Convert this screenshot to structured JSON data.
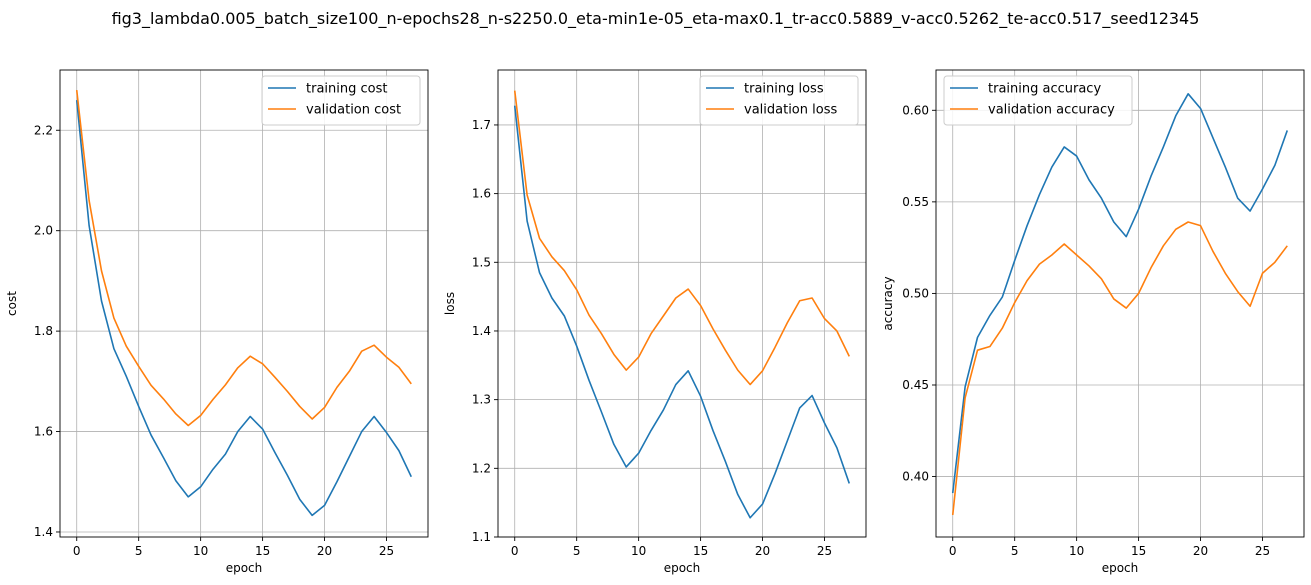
{
  "figure": {
    "suptitle": "fig3_lambda0.005_batch_size100_n-epochs28_n-s2250.0_eta-min1e-05_eta-max0.1_tr-acc0.5889_v-acc0.5262_te-acc0.517_seed12345"
  },
  "colors": {
    "series1": "#1f77b4",
    "series2": "#ff7f0e",
    "grid": "#b0b0b0"
  },
  "chart_data": [
    {
      "type": "line",
      "xlabel": "epoch",
      "ylabel": "cost",
      "grid": true,
      "legend_loc": "top-right",
      "xlim": [
        -1.35,
        28.35
      ],
      "ylim": [
        1.39,
        2.32
      ],
      "xticks": [
        0,
        5,
        10,
        15,
        20,
        25
      ],
      "yticks": [
        1.4,
        1.6,
        1.8,
        2.0,
        2.2
      ],
      "ytick_labels": [
        "1.4",
        "1.6",
        "1.8",
        "2.0",
        "2.2"
      ],
      "x": [
        0,
        1,
        2,
        3,
        4,
        5,
        6,
        7,
        8,
        9,
        10,
        11,
        12,
        13,
        14,
        15,
        16,
        17,
        18,
        19,
        20,
        21,
        22,
        23,
        24,
        25,
        26,
        27
      ],
      "series": [
        {
          "name": "training cost",
          "values": [
            2.26,
            2.01,
            1.86,
            1.765,
            1.71,
            1.65,
            1.593,
            1.548,
            1.502,
            1.47,
            1.49,
            1.525,
            1.555,
            1.6,
            1.63,
            1.605,
            1.558,
            1.513,
            1.465,
            1.433,
            1.453,
            1.5,
            1.55,
            1.6,
            1.63,
            1.598,
            1.562,
            1.51
          ]
        },
        {
          "name": "validation cost",
          "values": [
            2.28,
            2.06,
            1.92,
            1.826,
            1.77,
            1.73,
            1.692,
            1.665,
            1.635,
            1.612,
            1.632,
            1.664,
            1.693,
            1.727,
            1.75,
            1.735,
            1.708,
            1.68,
            1.65,
            1.625,
            1.648,
            1.688,
            1.72,
            1.76,
            1.772,
            1.748,
            1.728,
            1.695
          ]
        }
      ]
    },
    {
      "type": "line",
      "xlabel": "epoch",
      "ylabel": "loss",
      "grid": true,
      "legend_loc": "top-right",
      "xlim": [
        -1.35,
        28.35
      ],
      "ylim": [
        1.1,
        1.78
      ],
      "xticks": [
        0,
        5,
        10,
        15,
        20,
        25
      ],
      "yticks": [
        1.1,
        1.2,
        1.3,
        1.4,
        1.5,
        1.6,
        1.7
      ],
      "ytick_labels": [
        "1.1",
        "1.2",
        "1.3",
        "1.4",
        "1.5",
        "1.6",
        "1.7"
      ],
      "x": [
        0,
        1,
        2,
        3,
        4,
        5,
        6,
        7,
        8,
        9,
        10,
        11,
        12,
        13,
        14,
        15,
        16,
        17,
        18,
        19,
        20,
        21,
        22,
        23,
        24,
        25,
        26,
        27
      ],
      "series": [
        {
          "name": "training loss",
          "values": [
            1.728,
            1.56,
            1.485,
            1.448,
            1.422,
            1.378,
            1.328,
            1.282,
            1.235,
            1.202,
            1.222,
            1.255,
            1.285,
            1.322,
            1.342,
            1.305,
            1.255,
            1.21,
            1.162,
            1.128,
            1.148,
            1.192,
            1.24,
            1.288,
            1.306,
            1.266,
            1.23,
            1.178
          ]
        },
        {
          "name": "validation loss",
          "values": [
            1.75,
            1.598,
            1.535,
            1.508,
            1.488,
            1.46,
            1.423,
            1.396,
            1.366,
            1.343,
            1.362,
            1.396,
            1.422,
            1.448,
            1.461,
            1.437,
            1.403,
            1.372,
            1.343,
            1.322,
            1.342,
            1.376,
            1.412,
            1.444,
            1.448,
            1.418,
            1.4,
            1.363
          ]
        }
      ]
    },
    {
      "type": "line",
      "xlabel": "epoch",
      "ylabel": "accuracy",
      "grid": true,
      "legend_loc": "top-left",
      "xlim": [
        -1.35,
        28.35
      ],
      "ylim": [
        0.367,
        0.622
      ],
      "xticks": [
        0,
        5,
        10,
        15,
        20,
        25
      ],
      "yticks": [
        0.4,
        0.45,
        0.5,
        0.55,
        0.6
      ],
      "ytick_labels": [
        "0.40",
        "0.45",
        "0.50",
        "0.55",
        "0.60"
      ],
      "x": [
        0,
        1,
        2,
        3,
        4,
        5,
        6,
        7,
        8,
        9,
        10,
        11,
        12,
        13,
        14,
        15,
        16,
        17,
        18,
        19,
        20,
        21,
        22,
        23,
        24,
        25,
        26,
        27
      ],
      "series": [
        {
          "name": "training accuracy",
          "values": [
            0.391,
            0.449,
            0.476,
            0.488,
            0.498,
            0.518,
            0.537,
            0.554,
            0.569,
            0.58,
            0.575,
            0.562,
            0.552,
            0.539,
            0.531,
            0.546,
            0.564,
            0.58,
            0.597,
            0.609,
            0.601,
            0.585,
            0.569,
            0.552,
            0.545,
            0.557,
            0.57,
            0.589
          ]
        },
        {
          "name": "validation accuracy",
          "values": [
            0.379,
            0.443,
            0.469,
            0.471,
            0.481,
            0.495,
            0.507,
            0.516,
            0.521,
            0.527,
            0.521,
            0.515,
            0.508,
            0.497,
            0.492,
            0.5,
            0.514,
            0.526,
            0.535,
            0.539,
            0.537,
            0.523,
            0.511,
            0.501,
            0.493,
            0.511,
            0.517,
            0.526
          ]
        }
      ]
    }
  ]
}
